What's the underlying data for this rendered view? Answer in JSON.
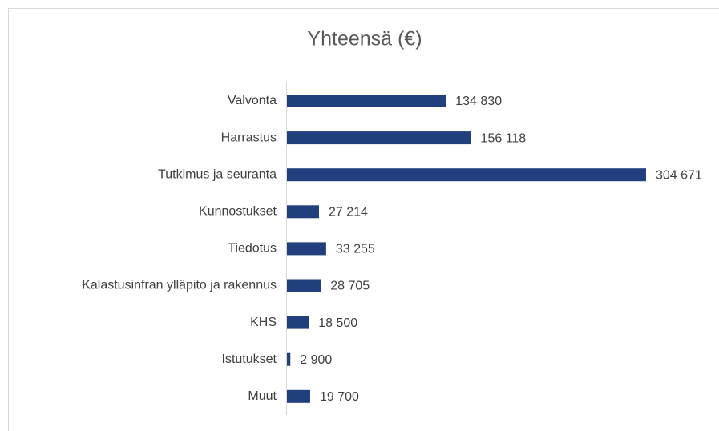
{
  "chart_data": {
    "type": "bar",
    "orientation": "horizontal",
    "title": "Yhteensä (€)",
    "categories": [
      "Valvonta",
      "Harrastus",
      "Tutkimus ja seuranta",
      "Kunnostukset",
      "Tiedotus",
      "Kalastusinfran ylläpito ja rakennus",
      "KHS",
      "Istutukset",
      "Muut"
    ],
    "values": [
      134830,
      156118,
      304671,
      27214,
      33255,
      28705,
      18500,
      2900,
      19700
    ],
    "value_labels": [
      "134 830",
      "156 118",
      "304 671",
      "27 214",
      "33 255",
      "28 705",
      "18 500",
      "2 900",
      "19 700"
    ],
    "color": "#203f7c"
  }
}
